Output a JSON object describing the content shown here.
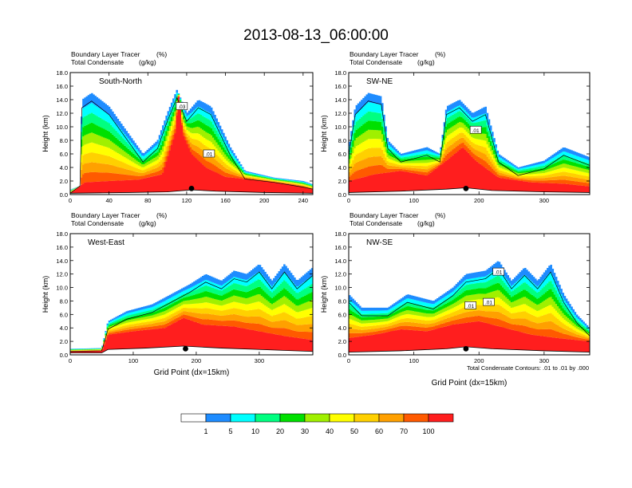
{
  "figure_title": "2013-08-13_06:00:00",
  "legend": {
    "labels": [
      "1",
      "5",
      "10",
      "20",
      "30",
      "40",
      "50",
      "60",
      "70",
      "100"
    ],
    "colors": [
      "#ffffff",
      "#1e8cff",
      "#00ffff",
      "#00ff80",
      "#00e000",
      "#a0f000",
      "#ffff00",
      "#ffd000",
      "#ffa000",
      "#ff5a00",
      "#ff1e1e"
    ]
  },
  "colors": {
    "outline": "#000000",
    "contour": "#000000",
    "ground": "#ffffff",
    "station_marker": "#000000"
  },
  "chart_data": [
    {
      "type": "heatmap",
      "panel_label": "South-North",
      "left_title_1": "Boundary Layer Tracer",
      "left_title_2": "Total Condensate",
      "units_1": "(%)",
      "units_2": "(g/kg)",
      "ylabel": "Height (km)",
      "xlabel": "",
      "xlim": [
        0,
        250
      ],
      "ylim": [
        0,
        18
      ],
      "xticks": [
        "0",
        "40",
        "80",
        "120",
        "160",
        "200",
        "240"
      ],
      "xtick_values": [
        0,
        40,
        80,
        120,
        160,
        200,
        240
      ],
      "yticks": [
        "0.0",
        "2.0",
        "4.0",
        "6.0",
        "8.0",
        "10.0",
        "12.0",
        "14.0",
        "16.0",
        "18.0"
      ],
      "ytick_values": [
        0,
        2,
        4,
        6,
        8,
        10,
        12,
        14,
        16,
        18
      ],
      "marker": {
        "x": 125,
        "y": 0.9
      },
      "contour_labels": [
        {
          "text": ".03",
          "x": 115,
          "y": 13.0
        },
        {
          "text": ".01",
          "x": 143,
          "y": 6.0
        }
      ],
      "terrain": [
        [
          0,
          0.2
        ],
        [
          60,
          0.3
        ],
        [
          100,
          0.4
        ],
        [
          125,
          0.7
        ],
        [
          150,
          0.5
        ],
        [
          200,
          0.3
        ],
        [
          250,
          0.2
        ]
      ],
      "tracer_top": [
        [
          0,
          0.7
        ],
        [
          10,
          1.3
        ],
        [
          12,
          14
        ],
        [
          22,
          15
        ],
        [
          40,
          13
        ],
        [
          60,
          9
        ],
        [
          75,
          6
        ],
        [
          90,
          8
        ],
        [
          100,
          12
        ],
        [
          110,
          15.5
        ],
        [
          120,
          12
        ],
        [
          132,
          14
        ],
        [
          145,
          13
        ],
        [
          155,
          10
        ],
        [
          165,
          7
        ],
        [
          180,
          3.5
        ],
        [
          210,
          2.5
        ],
        [
          240,
          2
        ],
        [
          250,
          1.5
        ]
      ],
      "tracer_core": [
        [
          0,
          0.2
        ],
        [
          15,
          1.8
        ],
        [
          40,
          2
        ],
        [
          70,
          2.2
        ],
        [
          95,
          3
        ],
        [
          108,
          9
        ],
        [
          112,
          15
        ],
        [
          116,
          9
        ],
        [
          125,
          6
        ],
        [
          140,
          4
        ],
        [
          160,
          2.6
        ],
        [
          200,
          2
        ],
        [
          230,
          1.4
        ],
        [
          250,
          0.8
        ]
      ]
    },
    {
      "type": "heatmap",
      "panel_label": "SW-NE",
      "left_title_1": "Boundary Layer Tracer",
      "left_title_2": "Total Condensate",
      "units_1": "(%)",
      "units_2": "(g/kg)",
      "ylabel": "Height (km)",
      "xlabel": "",
      "xlim": [
        0,
        370
      ],
      "ylim": [
        0,
        18
      ],
      "xticks": [
        "0",
        "100",
        "200",
        "300"
      ],
      "xtick_values": [
        0,
        100,
        200,
        300
      ],
      "yticks": [
        "0.0",
        "2.0",
        "4.0",
        "6.0",
        "8.0",
        "10.0",
        "12.0",
        "14.0",
        "16.0",
        "18.0"
      ],
      "ytick_values": [
        0,
        2,
        4,
        6,
        8,
        10,
        12,
        14,
        16,
        18
      ],
      "marker": {
        "x": 180,
        "y": 0.9
      },
      "contour_labels": [
        {
          "text": ".01",
          "x": 195,
          "y": 9.5
        }
      ],
      "terrain": [
        [
          0,
          0.3
        ],
        [
          80,
          0.5
        ],
        [
          150,
          0.8
        ],
        [
          180,
          1.0
        ],
        [
          220,
          0.6
        ],
        [
          300,
          0.4
        ],
        [
          370,
          0.3
        ]
      ],
      "tracer_top": [
        [
          0,
          7
        ],
        [
          10,
          13
        ],
        [
          30,
          15
        ],
        [
          50,
          14.5
        ],
        [
          60,
          8
        ],
        [
          80,
          6
        ],
        [
          120,
          7
        ],
        [
          140,
          6
        ],
        [
          150,
          13
        ],
        [
          170,
          14
        ],
        [
          190,
          12
        ],
        [
          210,
          13
        ],
        [
          230,
          6
        ],
        [
          260,
          4
        ],
        [
          300,
          5
        ],
        [
          330,
          7
        ],
        [
          370,
          5.5
        ]
      ],
      "tracer_core": [
        [
          0,
          2
        ],
        [
          40,
          3
        ],
        [
          80,
          3.5
        ],
        [
          120,
          2.8
        ],
        [
          150,
          5
        ],
        [
          175,
          7
        ],
        [
          195,
          5
        ],
        [
          230,
          2.5
        ],
        [
          280,
          1.8
        ],
        [
          330,
          1.6
        ],
        [
          370,
          1.2
        ]
      ]
    },
    {
      "type": "heatmap",
      "panel_label": "West-East",
      "left_title_1": "Boundary Layer Tracer",
      "left_title_2": "Total Condensate",
      "units_1": "(%)",
      "units_2": "(g/kg)",
      "ylabel": "Height (km)",
      "xlabel": "Grid Point (dx=15km)",
      "xlim": [
        0,
        385
      ],
      "ylim": [
        0,
        18
      ],
      "xticks": [
        "0",
        "100",
        "200",
        "300"
      ],
      "xtick_values": [
        0,
        100,
        200,
        300
      ],
      "yticks": [
        "0.0",
        "2.0",
        "4.0",
        "6.0",
        "8.0",
        "10.0",
        "12.0",
        "14.0",
        "16.0",
        "18.0"
      ],
      "ytick_values": [
        0,
        2,
        4,
        6,
        8,
        10,
        12,
        14,
        16,
        18
      ],
      "marker": {
        "x": 183,
        "y": 0.9
      },
      "contour_labels": [],
      "terrain": [
        [
          0,
          0.3
        ],
        [
          50,
          0.3
        ],
        [
          60,
          0.8
        ],
        [
          120,
          1.0
        ],
        [
          180,
          1.3
        ],
        [
          240,
          1.0
        ],
        [
          300,
          0.8
        ],
        [
          385,
          0.5
        ]
      ],
      "tracer_top": [
        [
          0,
          0.9
        ],
        [
          50,
          1
        ],
        [
          60,
          5
        ],
        [
          90,
          6.5
        ],
        [
          130,
          7.5
        ],
        [
          160,
          9
        ],
        [
          190,
          10.5
        ],
        [
          215,
          12
        ],
        [
          240,
          11
        ],
        [
          260,
          12.5
        ],
        [
          280,
          12
        ],
        [
          300,
          13.5
        ],
        [
          320,
          11
        ],
        [
          340,
          13.5
        ],
        [
          360,
          11
        ],
        [
          385,
          13
        ]
      ],
      "tracer_core": [
        [
          0,
          0.5
        ],
        [
          50,
          0.6
        ],
        [
          60,
          3
        ],
        [
          100,
          3.5
        ],
        [
          150,
          4
        ],
        [
          180,
          5.5
        ],
        [
          210,
          4.5
        ],
        [
          260,
          4.2
        ],
        [
          300,
          3.5
        ],
        [
          340,
          2.8
        ],
        [
          385,
          2.2
        ]
      ]
    },
    {
      "type": "heatmap",
      "panel_label": "NW-SE",
      "left_title_1": "Boundary Layer Tracer",
      "left_title_2": "Total Condensate",
      "units_1": "(%)",
      "units_2": "(g/kg)",
      "ylabel": "Height (km)",
      "xlabel": "Grid Point (dx=15km)",
      "xlim": [
        0,
        370
      ],
      "ylim": [
        0,
        18
      ],
      "xticks": [
        "0",
        "100",
        "200",
        "300"
      ],
      "xtick_values": [
        0,
        100,
        200,
        300
      ],
      "yticks": [
        "0.0",
        "2.0",
        "4.0",
        "6.0",
        "8.0",
        "10.0",
        "12.0",
        "14.0",
        "16.0",
        "18.0"
      ],
      "ytick_values": [
        0,
        2,
        4,
        6,
        8,
        10,
        12,
        14,
        16,
        18
      ],
      "marker": {
        "x": 180,
        "y": 0.9
      },
      "contour_labels": [
        {
          "text": ".01",
          "x": 230,
          "y": 12.3
        },
        {
          "text": ".01",
          "x": 215,
          "y": 7.8
        },
        {
          "text": ".01",
          "x": 187,
          "y": 7.3
        }
      ],
      "footnote": "Total Condensate Contours: .01 to .01 by .000",
      "terrain": [
        [
          0,
          0.4
        ],
        [
          80,
          0.6
        ],
        [
          150,
          0.9
        ],
        [
          180,
          1.2
        ],
        [
          220,
          0.9
        ],
        [
          300,
          0.6
        ],
        [
          370,
          0.4
        ]
      ],
      "tracer_top": [
        [
          0,
          9
        ],
        [
          20,
          7
        ],
        [
          60,
          7
        ],
        [
          90,
          9
        ],
        [
          130,
          8
        ],
        [
          160,
          10
        ],
        [
          180,
          12
        ],
        [
          210,
          12.5
        ],
        [
          230,
          14
        ],
        [
          250,
          11
        ],
        [
          270,
          13
        ],
        [
          290,
          11
        ],
        [
          310,
          13.5
        ],
        [
          330,
          9
        ],
        [
          350,
          6
        ],
        [
          370,
          4
        ]
      ],
      "tracer_core": [
        [
          0,
          2.5
        ],
        [
          40,
          3
        ],
        [
          80,
          3.8
        ],
        [
          120,
          3.5
        ],
        [
          160,
          4.5
        ],
        [
          200,
          5
        ],
        [
          240,
          4
        ],
        [
          280,
          3
        ],
        [
          320,
          2.5
        ],
        [
          370,
          2
        ]
      ]
    }
  ]
}
